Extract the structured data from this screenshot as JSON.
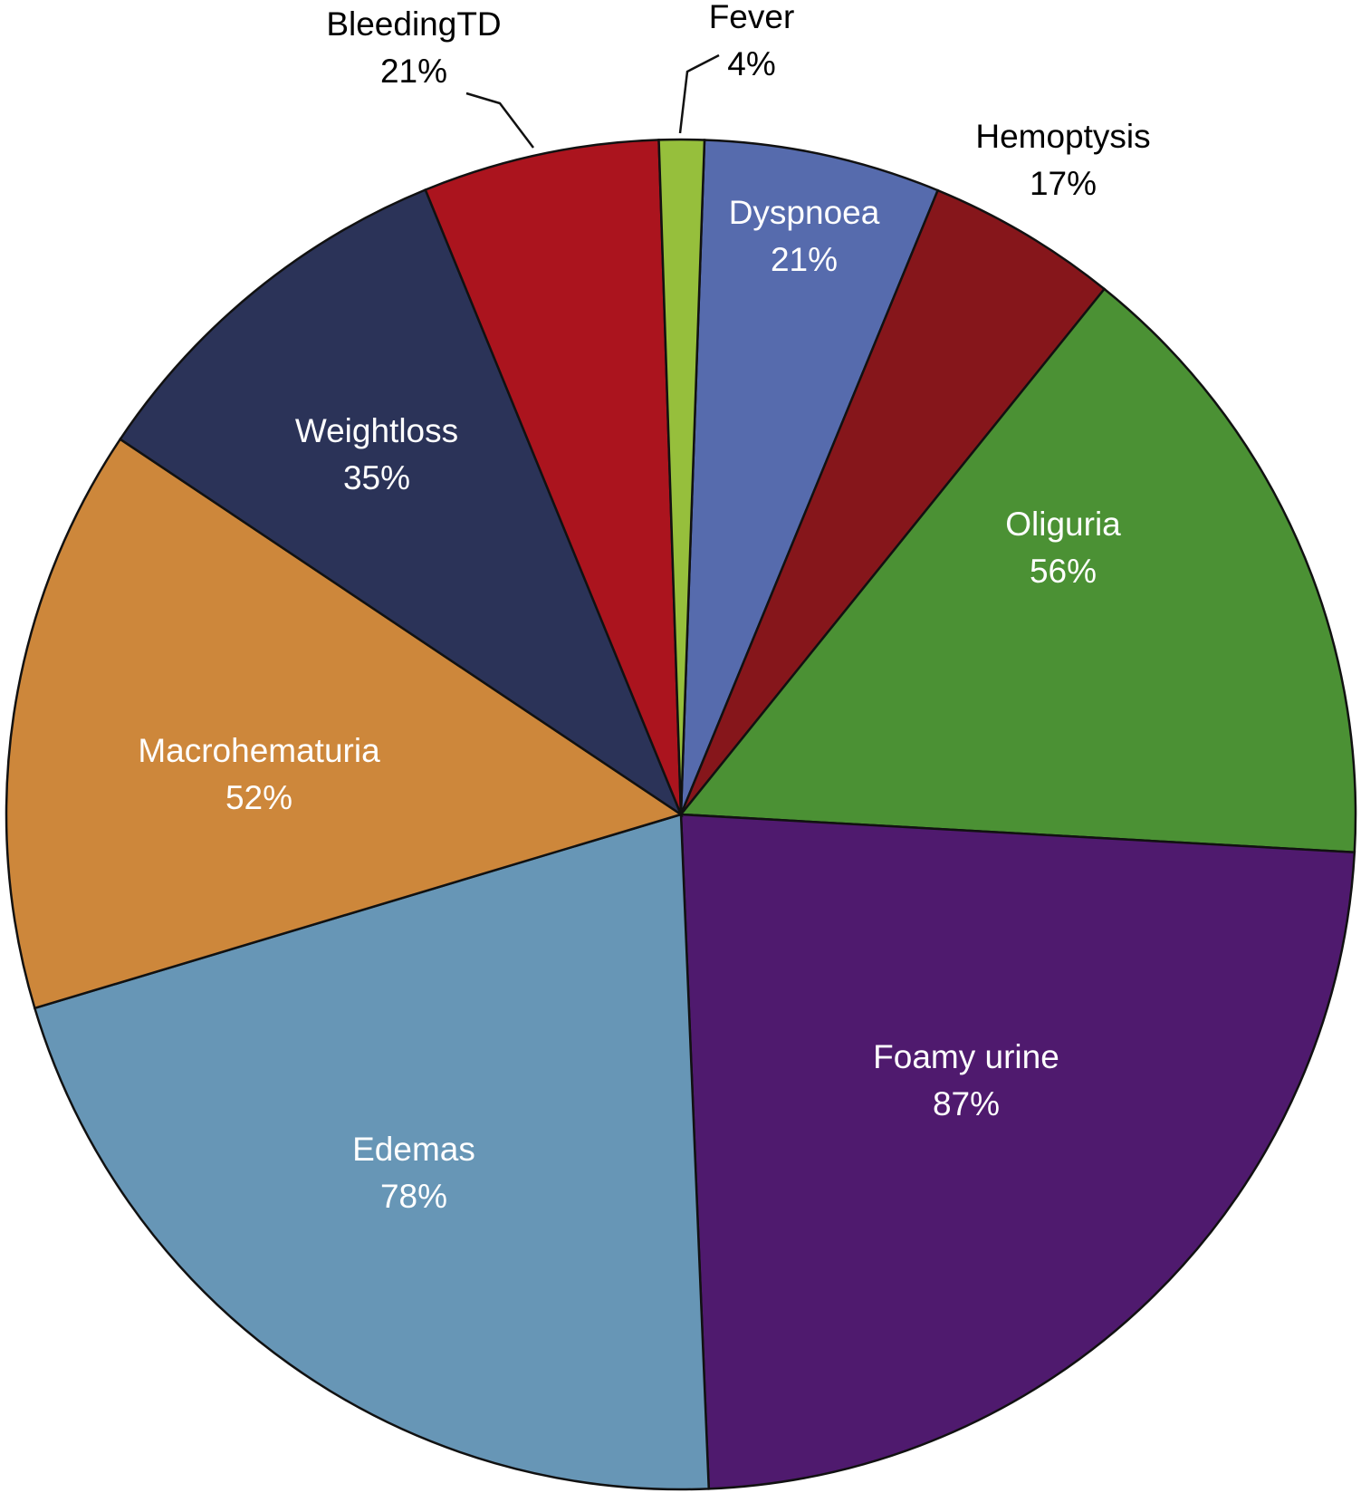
{
  "chart_data": {
    "type": "pie",
    "categories": [
      "Dyspnoea",
      "Hemoptysis",
      "Oliguria",
      "Foamy urine",
      "Edemas",
      "Macrohematuria",
      "Weightloss",
      "BleedingTD",
      "Fever"
    ],
    "values": [
      21,
      17,
      56,
      87,
      78,
      52,
      35,
      21,
      4
    ],
    "value_labels": [
      "21%",
      "17%",
      "56%",
      "87%",
      "78%",
      "52%",
      "35%",
      "21%",
      "4%"
    ],
    "colors": [
      "#566bad",
      "#86161b",
      "#4b9134",
      "#4f1a6e",
      "#6796b6",
      "#cd873b",
      "#2b3358",
      "#ab141e",
      "#96bf3c"
    ]
  }
}
